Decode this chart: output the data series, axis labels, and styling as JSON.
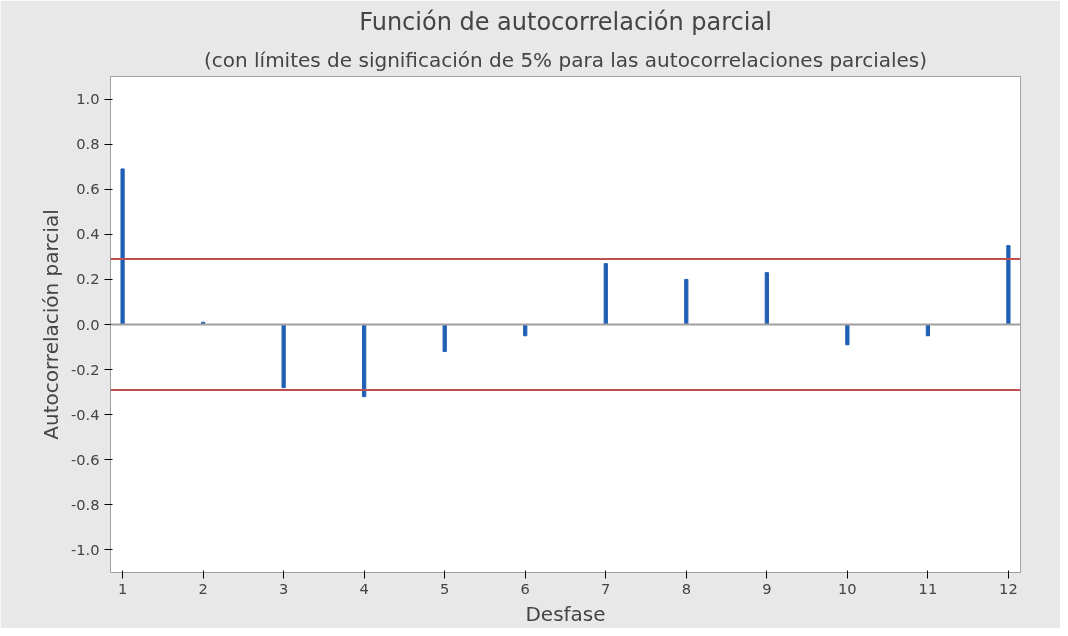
{
  "chart_data": {
    "type": "bar",
    "title": "Función de autocorrelación parcial",
    "subtitle": "(con límites de significación de 5% para las autocorrelaciones parciales)",
    "xlabel": "Desfase",
    "ylabel": "Autocorrelación parcial",
    "x": [
      1,
      2,
      3,
      4,
      5,
      6,
      7,
      8,
      9,
      10,
      11,
      12
    ],
    "series": [
      {
        "color": "#1f5fb4",
        "values": [
          0.69,
          0.01,
          -0.28,
          -0.32,
          -0.12,
          -0.05,
          0.27,
          0.2,
          0.23,
          -0.09,
          -0.05,
          0.35
        ]
      }
    ],
    "xlim": [
      0.85,
      12.15
    ],
    "xticks": [
      1,
      2,
      3,
      4,
      5,
      6,
      7,
      8,
      9,
      10,
      11,
      12
    ],
    "ylim": [
      -1.1,
      1.1
    ],
    "yticks": [
      {
        "value": -1.0,
        "label": "-1.0"
      },
      {
        "value": -0.8,
        "label": "-0.8"
      },
      {
        "value": -0.6,
        "label": "-0.6"
      },
      {
        "value": -0.4,
        "label": "-0.4"
      },
      {
        "value": -0.2,
        "label": "-0.2"
      },
      {
        "value": 0.0,
        "label": "0.0"
      },
      {
        "value": 0.2,
        "label": "0.2"
      },
      {
        "value": 0.4,
        "label": "0.4"
      },
      {
        "value": 0.6,
        "label": "0.6"
      },
      {
        "value": 0.8,
        "label": "0.8"
      },
      {
        "value": 1.0,
        "label": "1.0"
      }
    ],
    "ref_lines": [
      {
        "axis": "y",
        "value": 0.29,
        "label": null,
        "color": "#c0504d"
      },
      {
        "axis": "y",
        "value": -0.29,
        "label": null,
        "color": "#c0504d"
      },
      {
        "axis": "y",
        "value": 0,
        "label": null,
        "color": "#a0a0a0"
      }
    ],
    "grid": false
  }
}
